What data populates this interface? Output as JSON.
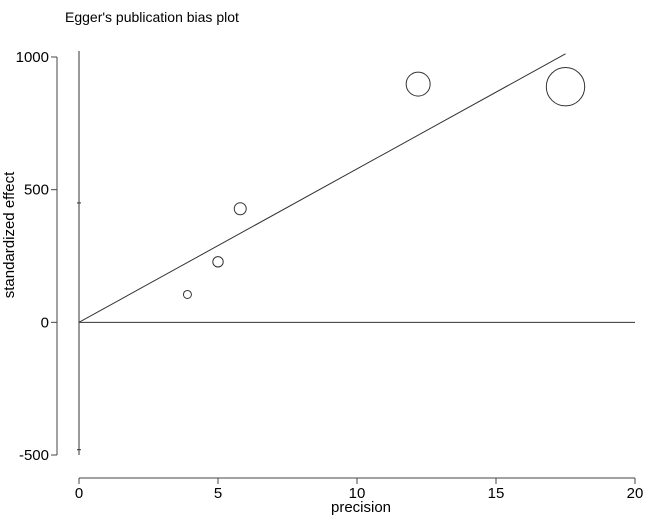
{
  "chart_data": {
    "type": "scatter",
    "title": "Egger's publication bias plot",
    "xlabel": "precision",
    "ylabel": "standardized effect",
    "xlim": [
      0,
      20
    ],
    "ylim": [
      -500,
      1000
    ],
    "xticks": [
      0,
      5,
      10,
      15,
      20
    ],
    "yticks": [
      1000,
      500,
      0,
      -500
    ],
    "points": [
      {
        "x": 3.9,
        "y": 105,
        "size": 1.0
      },
      {
        "x": 5.0,
        "y": 228,
        "size": 1.3
      },
      {
        "x": 5.8,
        "y": 428,
        "size": 1.5
      },
      {
        "x": 12.2,
        "y": 898,
        "size": 3.0
      },
      {
        "x": 17.5,
        "y": 888,
        "size": 4.8
      }
    ],
    "regression_line": {
      "x": [
        0,
        17.5
      ],
      "y": [
        0,
        1012
      ]
    },
    "intercept_ci": {
      "x": 0,
      "low": -480,
      "high": 450
    },
    "reference_line_y": 0
  }
}
